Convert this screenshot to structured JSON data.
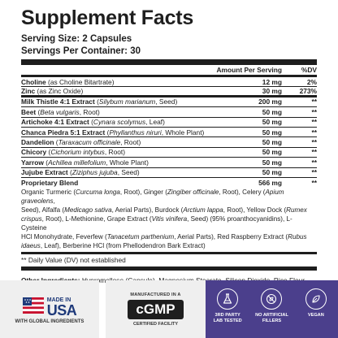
{
  "panel": {
    "title": "Supplement Facts",
    "serving_size": "Serving Size: 2 Capsules",
    "servings_per_container": "Servings Per Container: 30",
    "header": {
      "amount": "Amount Per Serving",
      "dv": "%DV"
    },
    "rows": [
      {
        "name": "Choline",
        "desc": " (as Choline Bitartrate)",
        "amount": "12 mg",
        "dv": "2%"
      },
      {
        "name": "Zinc",
        "desc": " (as Zinc Oxide)",
        "amount": "30 mg",
        "dv": "273%"
      },
      {
        "name": "Milk Thistle 4:1 Extract",
        "desc_pre": " (",
        "desc_italic": "Silybum marianum",
        "desc_post": ", Seed)",
        "amount": "200 mg",
        "dv": "**"
      },
      {
        "name": "Beet",
        "desc_pre": " (",
        "desc_italic": "Beta vulgaris",
        "desc_post": ", Root)",
        "amount": "50 mg",
        "dv": "**"
      },
      {
        "name": "Artichoke 4:1 Extract",
        "desc_pre": " (",
        "desc_italic": "Cynara scolymus",
        "desc_post": ", Leaf)",
        "amount": "50 mg",
        "dv": "**"
      },
      {
        "name": "Chanca Piedra 5:1 Extract",
        "desc_pre": " (",
        "desc_italic": "Phyllanthus niruri",
        "desc_post": ", Whole Plant)",
        "amount": "50 mg",
        "dv": "**"
      },
      {
        "name": "Dandelion",
        "desc_pre": " (",
        "desc_italic": "Taraxacum officinale",
        "desc_post": ", Root)",
        "amount": "50 mg",
        "dv": "**"
      },
      {
        "name": "Chicory",
        "desc_pre": " (",
        "desc_italic": "Cichorium intybus",
        "desc_post": ", Root)",
        "amount": "50 mg",
        "dv": "**"
      },
      {
        "name": "Yarrow",
        "desc_pre": " (",
        "desc_italic": "Achillea millefolium",
        "desc_post": ", Whole Plant)",
        "amount": "50 mg",
        "dv": "**"
      },
      {
        "name": "Jujube Extract",
        "desc_pre": " (",
        "desc_italic": "Ziziphus jujuba",
        "desc_post": ", Seed)",
        "amount": "50 mg",
        "dv": "**"
      }
    ],
    "blend": {
      "name": "Proprietary Blend",
      "amount": "566 mg",
      "dv": "**",
      "segments": [
        "Organic Turmeric (",
        "Curcuma longa",
        ", Root), Ginger (",
        "Zingiber officinale",
        ", Root), Celery (",
        "Apium graveolens",
        ",",
        " Seed), Alfalfa (",
        "Medicago sativa",
        ", Aerial Parts), Burdock (",
        "Arctium lappa",
        ", Root), Yellow Dock (",
        "Rumex",
        " crispus",
        ", Root), L-Methionine, Grape Extract (",
        "Vitis vinifera",
        ", Seed) (95% proanthocyanidins), L-Cysteine",
        " HCl Monohydrate, Feverfew (",
        "Tanacetum parthenium",
        ", Aerial Parts), Red Raspberry Extract (",
        "Rubus",
        " idaeus",
        ", Leaf), Berberine HCl (from Phellodendron Bark Extract)"
      ]
    },
    "footnote": "** Daily Value (DV) not established",
    "other_label": "Other Ingredients:",
    "other_text": " Hypromellose (Capsule), Magnesium Stearate, Silicon Dioxide, Rice Flour"
  },
  "badges": {
    "usa": {
      "small": "MADE IN",
      "big": "USA",
      "sub": "WITH GLOBAL INGREDIENTS"
    },
    "cgmp": {
      "top": "MANUFACTURED IN A",
      "main": "cGMP",
      "bottom": "CERTIFIED FACILITY"
    },
    "icons": [
      {
        "icon": "flask-icon",
        "line1": "3RD PARTY",
        "line2": "LAB TESTED"
      },
      {
        "icon": "no-artificial-icon",
        "line1": "NO ARTIFICIAL",
        "line2": "FILLERS"
      },
      {
        "icon": "leaf-icon",
        "line1": "VEGAN",
        "line2": ""
      }
    ],
    "colors": {
      "purple": "#4b3f8c",
      "navy": "#1f3a7a",
      "flag_red": "#c8102e"
    }
  }
}
